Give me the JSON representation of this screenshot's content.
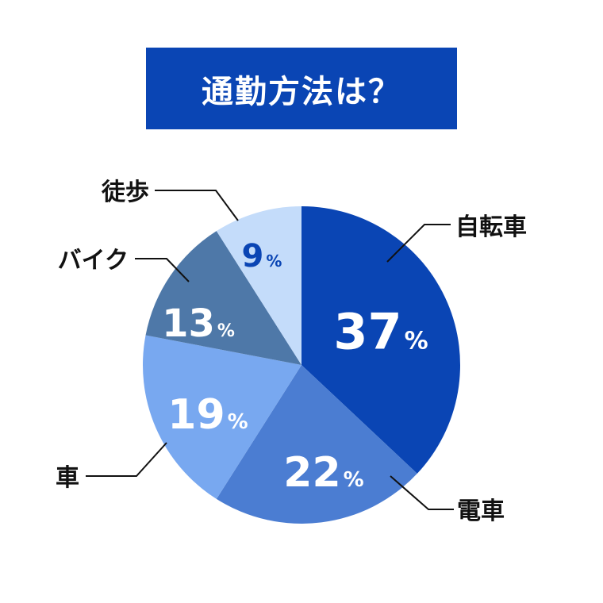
{
  "title": "通勤方法は？",
  "chart_data": {
    "type": "pie",
    "unit": "%",
    "slices": [
      {
        "label": "自転車",
        "value": 37,
        "color": "#0a45b4",
        "text_color": "#ffffff"
      },
      {
        "label": "電車",
        "value": 22,
        "color": "#4b7dd2",
        "text_color": "#ffffff"
      },
      {
        "label": "車",
        "value": 19,
        "color": "#78a8f0",
        "text_color": "#ffffff"
      },
      {
        "label": "バイク",
        "value": 13,
        "color": "#4e78a8",
        "text_color": "#ffffff"
      },
      {
        "label": "徒歩",
        "value": 9,
        "color": "#c4dcfa",
        "text_color": "#0a45b4"
      }
    ]
  }
}
